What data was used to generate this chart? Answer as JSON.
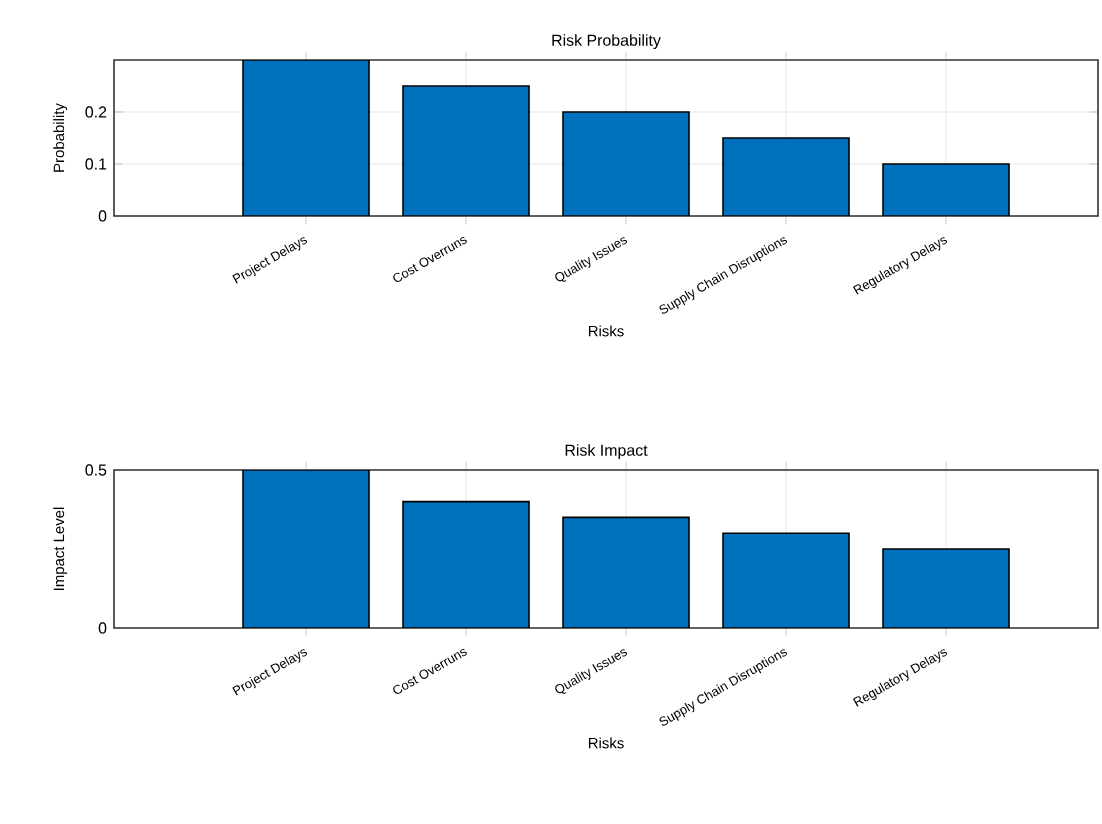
{
  "chart_data": [
    {
      "type": "bar",
      "title": "Risk Probability",
      "xlabel": "Risks",
      "ylabel": "Probability",
      "categories": [
        "Project Delays",
        "Cost Overruns",
        "Quality Issues",
        "Supply Chain Disruptions",
        "Regulatory Delays"
      ],
      "values": [
        0.3,
        0.25,
        0.2,
        0.15,
        0.1
      ],
      "color": "#0072bd",
      "ylim": [
        0,
        0.3
      ],
      "yticks": [
        0,
        0.1,
        0.2
      ],
      "grid": true
    },
    {
      "type": "bar",
      "title": "Risk Impact",
      "xlabel": "Risks",
      "ylabel": "Impact Level",
      "categories": [
        "Project Delays",
        "Cost Overruns",
        "Quality Issues",
        "Supply Chain Disruptions",
        "Regulatory Delays"
      ],
      "values": [
        0.5,
        0.4,
        0.35,
        0.3,
        0.25
      ],
      "color": "#0072bd",
      "ylim": [
        0,
        0.5
      ],
      "yticks": [
        0,
        0.5
      ],
      "grid": true
    }
  ]
}
